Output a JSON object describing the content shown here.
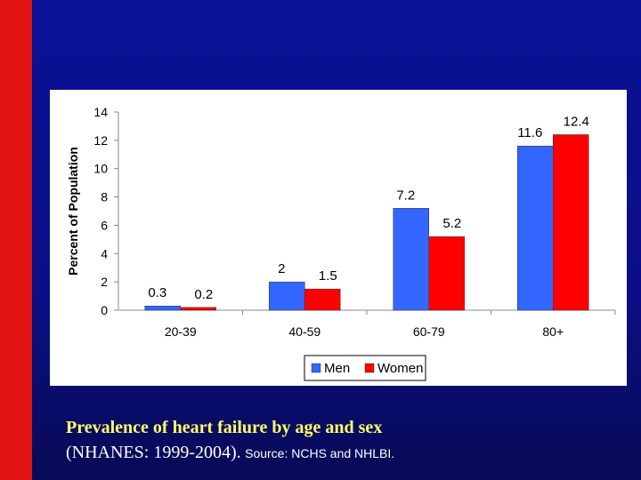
{
  "chart_data": {
    "type": "bar",
    "title": "",
    "xlabel": "",
    "ylabel": "Percent of Population",
    "ylim": [
      0,
      14
    ],
    "yticks": [
      0,
      2,
      4,
      6,
      8,
      10,
      12,
      14
    ],
    "categories": [
      "20-39",
      "40-59",
      "60-79",
      "80+"
    ],
    "series": [
      {
        "name": "Men",
        "color": "#3366ff",
        "values": [
          0.3,
          2,
          7.2,
          11.6
        ],
        "labels": [
          "0.3",
          "2",
          "7.2",
          "11.6"
        ]
      },
      {
        "name": "Women",
        "color": "#ff0000",
        "values": [
          0.2,
          1.5,
          5.2,
          12.4
        ],
        "labels": [
          "0.2",
          "1.5",
          "5.2",
          "12.4"
        ]
      }
    ],
    "legend": "bottom"
  },
  "caption": {
    "line1": "Prevalence of heart failure by age and sex",
    "line2_main": "(NHANES: 1999-2004).",
    "line2_source": "Source: NCHS and NHLBI."
  }
}
